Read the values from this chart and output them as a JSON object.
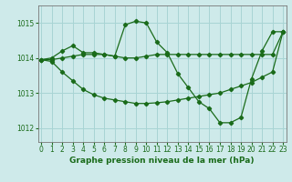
{
  "title": "Graphe pression niveau de la mer (hPa)",
  "bg_color": "#ceeaea",
  "grid_color": "#a8d4d4",
  "line_color": "#1a6b1a",
  "xlim": [
    -0.3,
    23.3
  ],
  "ylim": [
    1011.6,
    1015.5
  ],
  "yticks": [
    1012,
    1013,
    1014,
    1015
  ],
  "xticks": [
    0,
    1,
    2,
    3,
    4,
    5,
    6,
    7,
    8,
    9,
    10,
    11,
    12,
    13,
    14,
    15,
    16,
    17,
    18,
    19,
    20,
    21,
    22,
    23
  ],
  "series1_x": [
    0,
    1,
    2,
    3,
    4,
    5,
    6,
    7,
    8,
    9,
    10,
    11,
    12,
    13,
    14,
    15,
    16,
    17,
    18,
    19,
    20,
    21,
    22,
    23
  ],
  "series1_y": [
    1013.95,
    1014.0,
    1014.2,
    1014.35,
    1014.15,
    1014.15,
    1014.1,
    1014.05,
    1014.95,
    1015.05,
    1015.0,
    1014.45,
    1014.15,
    1013.55,
    1013.15,
    1012.75,
    1012.55,
    1012.15,
    1012.15,
    1012.3,
    1013.4,
    1014.2,
    1014.75,
    1014.75
  ],
  "series2_x": [
    0,
    1,
    2,
    3,
    4,
    5,
    6,
    7,
    8,
    9,
    10,
    11,
    12,
    13,
    14,
    15,
    16,
    17,
    18,
    19,
    20,
    21,
    22,
    23
  ],
  "series2_y": [
    1013.95,
    1013.9,
    1013.6,
    1013.35,
    1013.1,
    1012.95,
    1012.85,
    1012.8,
    1012.75,
    1012.7,
    1012.7,
    1012.72,
    1012.75,
    1012.8,
    1012.85,
    1012.9,
    1012.95,
    1013.0,
    1013.1,
    1013.2,
    1013.3,
    1013.45,
    1013.6,
    1014.75
  ],
  "series3_x": [
    0,
    1,
    2,
    3,
    4,
    5,
    6,
    7,
    8,
    9,
    10,
    11,
    12,
    13,
    14,
    15,
    16,
    17,
    18,
    19,
    20,
    21,
    22,
    23
  ],
  "series3_y": [
    1013.95,
    1013.95,
    1014.0,
    1014.05,
    1014.1,
    1014.1,
    1014.1,
    1014.05,
    1014.0,
    1014.0,
    1014.05,
    1014.1,
    1014.1,
    1014.1,
    1014.1,
    1014.1,
    1014.1,
    1014.1,
    1014.1,
    1014.1,
    1014.1,
    1014.1,
    1014.1,
    1014.75
  ],
  "tick_fontsize": 5.5,
  "title_fontsize": 6.5
}
